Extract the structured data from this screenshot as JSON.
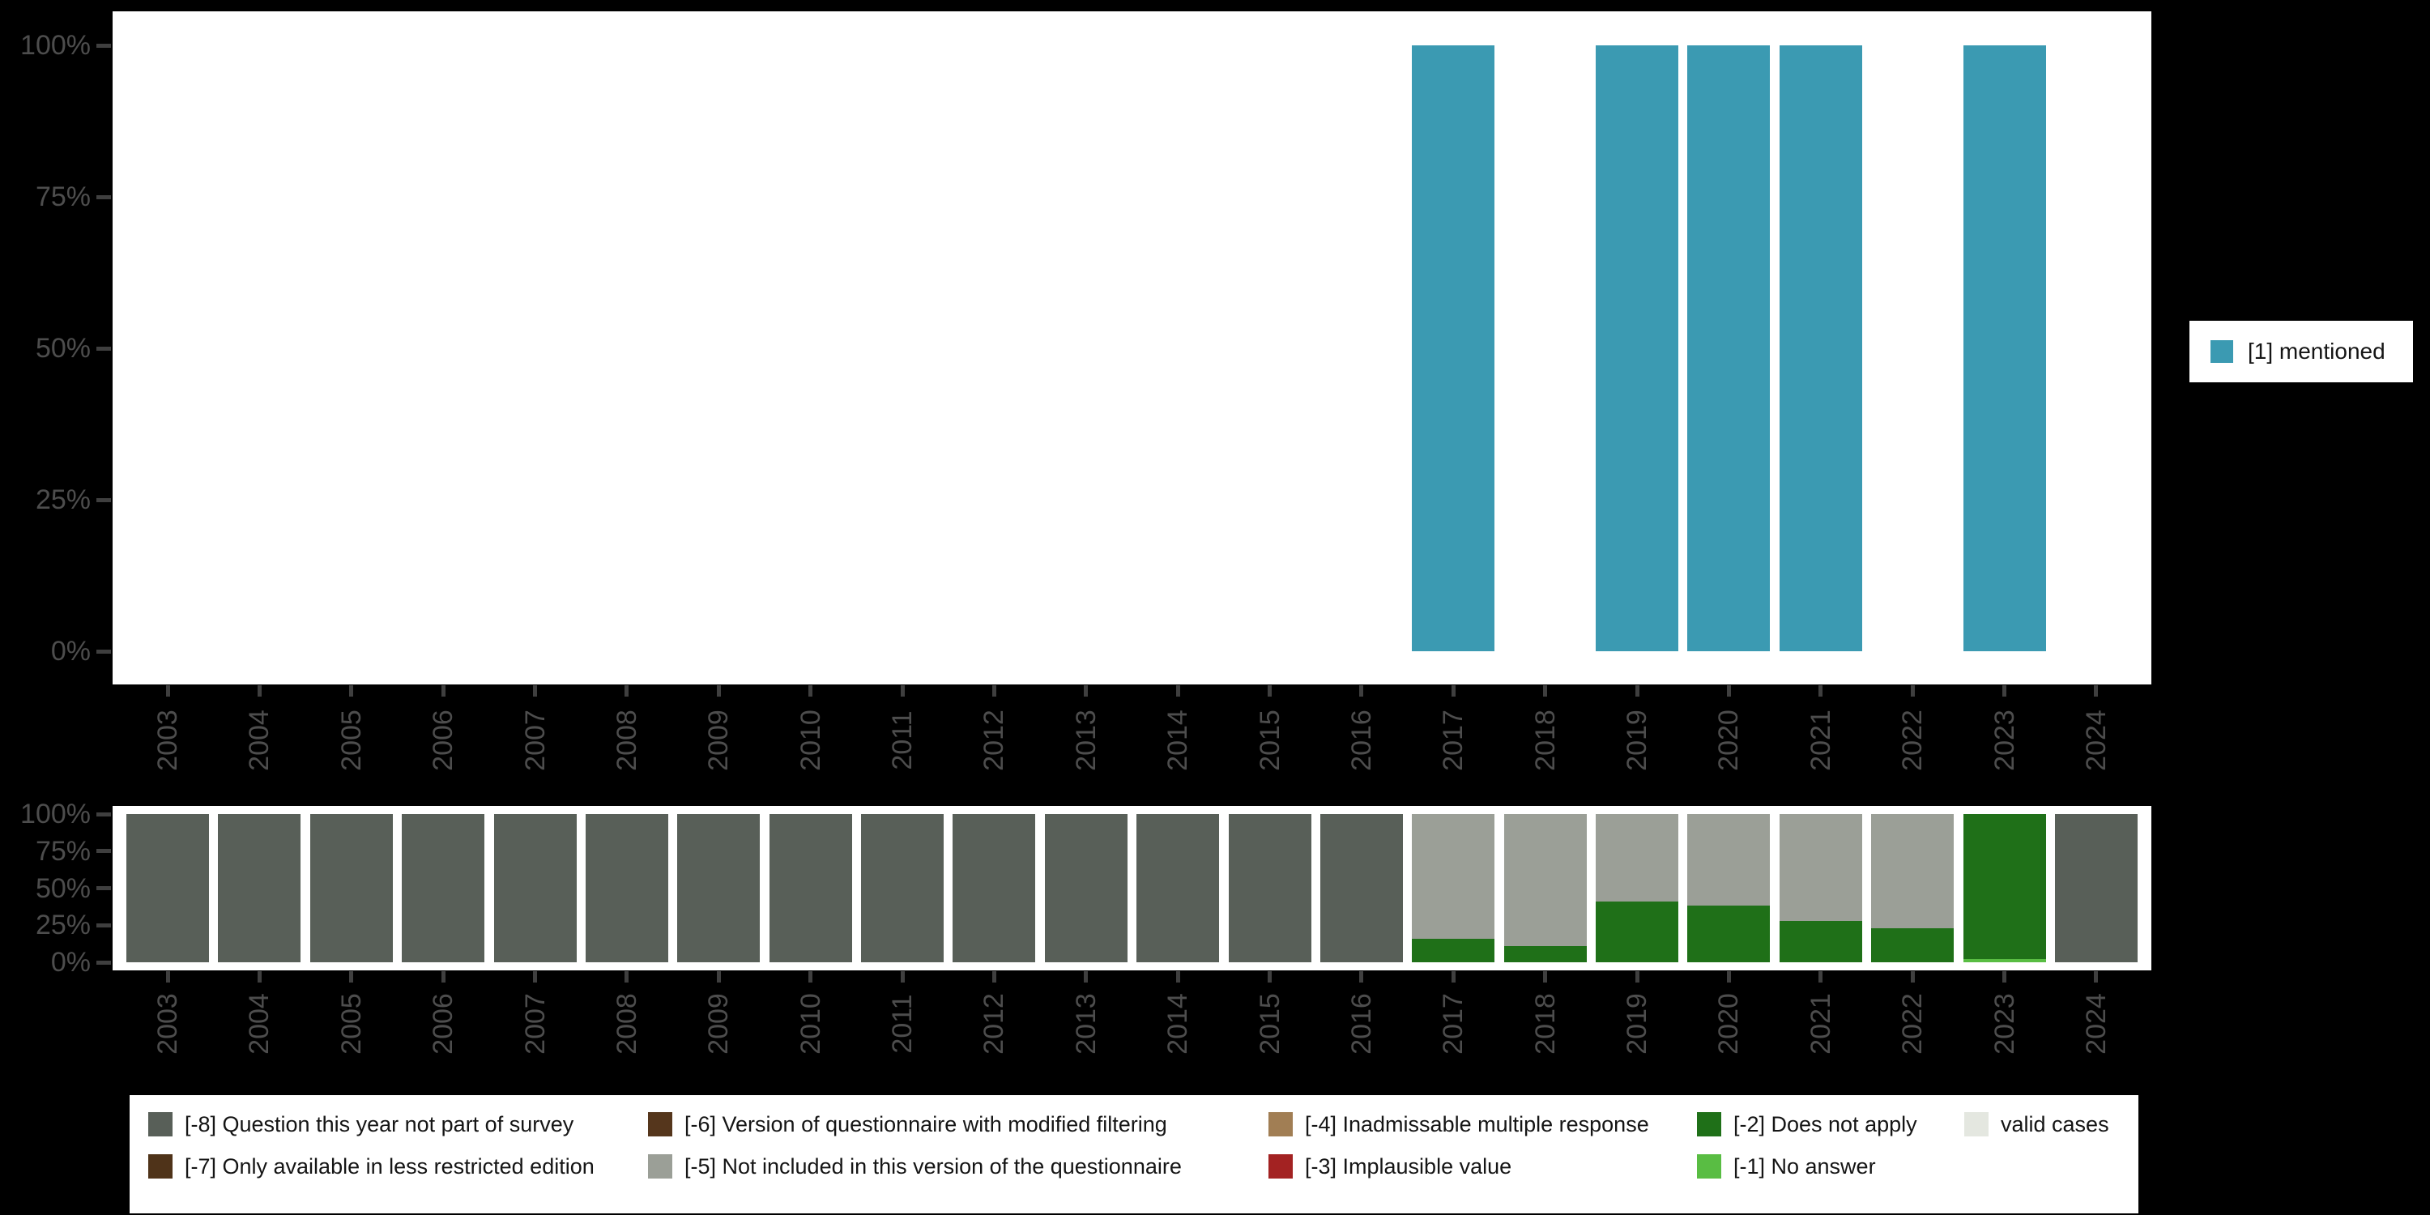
{
  "background_color": "#000000",
  "axis_text_color": "#4d4d4d",
  "chart_data": [
    {
      "type": "bar",
      "title": "",
      "xlabel": "",
      "ylabel": "",
      "ylim": [
        0,
        100
      ],
      "grid": false,
      "y_ticks": [
        "100%",
        "75%",
        "50%",
        "25%",
        "0%"
      ],
      "categories": [
        "2003",
        "2004",
        "2005",
        "2006",
        "2007",
        "2008",
        "2009",
        "2010",
        "2011",
        "2012",
        "2013",
        "2014",
        "2015",
        "2016",
        "2017",
        "2018",
        "2019",
        "2020",
        "2021",
        "2022",
        "2023",
        "2024"
      ],
      "series": [
        {
          "name": "[1] mentioned",
          "color": "#3B9AB2",
          "values": [
            null,
            null,
            null,
            null,
            null,
            null,
            null,
            null,
            null,
            null,
            null,
            null,
            null,
            null,
            100,
            null,
            100,
            100,
            100,
            null,
            100,
            null
          ]
        }
      ],
      "legend": {
        "position": "right",
        "entries": [
          {
            "label": "[1] mentioned",
            "color": "#3B9AB2"
          }
        ]
      }
    },
    {
      "type": "stacked-bar-100",
      "title": "",
      "xlabel": "",
      "ylabel": "",
      "ylim": [
        0,
        100
      ],
      "grid": false,
      "y_ticks": [
        "100%",
        "75%",
        "50%",
        "25%",
        "0%"
      ],
      "categories": [
        "2003",
        "2004",
        "2005",
        "2006",
        "2007",
        "2008",
        "2009",
        "2010",
        "2011",
        "2012",
        "2013",
        "2014",
        "2015",
        "2016",
        "2017",
        "2018",
        "2019",
        "2020",
        "2021",
        "2022",
        "2023",
        "2024"
      ],
      "series": [
        {
          "name": "[-8] Question this year not part of survey",
          "color": "#585F58",
          "values": [
            100,
            100,
            100,
            100,
            100,
            100,
            100,
            100,
            100,
            100,
            100,
            100,
            100,
            100,
            0,
            0,
            0,
            0,
            0,
            0,
            0,
            100
          ]
        },
        {
          "name": "[-7] Only available in less restricted edition",
          "color": "#4F3319",
          "values": [
            0,
            0,
            0,
            0,
            0,
            0,
            0,
            0,
            0,
            0,
            0,
            0,
            0,
            0,
            0,
            0,
            0,
            0,
            0,
            0,
            0,
            0
          ]
        },
        {
          "name": "[-6] Version of questionnaire with modified filtering",
          "color": "#55361C",
          "values": [
            0,
            0,
            0,
            0,
            0,
            0,
            0,
            0,
            0,
            0,
            0,
            0,
            0,
            0,
            0,
            0,
            0,
            0,
            0,
            0,
            0,
            0
          ]
        },
        {
          "name": "[-5] Not included in this version of the questionnaire",
          "color": "#9B9F97",
          "values": [
            0,
            0,
            0,
            0,
            0,
            0,
            0,
            0,
            0,
            0,
            0,
            0,
            0,
            0,
            84,
            89,
            59,
            62,
            72,
            77,
            0,
            0
          ]
        },
        {
          "name": "[-4] Inadmissable multiple response",
          "color": "#A17E54",
          "values": [
            0,
            0,
            0,
            0,
            0,
            0,
            0,
            0,
            0,
            0,
            0,
            0,
            0,
            0,
            0,
            0,
            0,
            0,
            0,
            0,
            0,
            0
          ]
        },
        {
          "name": "[-3] Implausible value",
          "color": "#A32222",
          "values": [
            0,
            0,
            0,
            0,
            0,
            0,
            0,
            0,
            0,
            0,
            0,
            0,
            0,
            0,
            0,
            0,
            0,
            0,
            0,
            0,
            0,
            0
          ]
        },
        {
          "name": "[-2] Does not apply",
          "color": "#1F7018",
          "values": [
            0,
            0,
            0,
            0,
            0,
            0,
            0,
            0,
            0,
            0,
            0,
            0,
            0,
            0,
            16,
            11,
            41,
            38,
            28,
            23,
            98,
            0
          ]
        },
        {
          "name": "[-1] No answer",
          "color": "#59BD43",
          "values": [
            0,
            0,
            0,
            0,
            0,
            0,
            0,
            0,
            0,
            0,
            0,
            0,
            0,
            0,
            0,
            0,
            0,
            0,
            0,
            0,
            2,
            0
          ]
        },
        {
          "name": "valid cases",
          "color": "#E4E7E0",
          "values": [
            0,
            0,
            0,
            0,
            0,
            0,
            0,
            0,
            0,
            0,
            0,
            0,
            0,
            0,
            0,
            0,
            0,
            0,
            0,
            0,
            0,
            0
          ]
        }
      ],
      "legend": {
        "position": "bottom",
        "entries": [
          {
            "label": "[-8] Question this year not part of survey",
            "color": "#585F58"
          },
          {
            "label": "[-7] Only available in less restricted edition",
            "color": "#4F3319"
          },
          {
            "label": "[-6] Version of questionnaire with modified filtering",
            "color": "#55361C"
          },
          {
            "label": "[-5] Not included in this version of the questionnaire",
            "color": "#9B9F97"
          },
          {
            "label": "[-4] Inadmissable multiple response",
            "color": "#A17E54"
          },
          {
            "label": "[-3] Implausible value",
            "color": "#A32222"
          },
          {
            "label": "[-2] Does not apply",
            "color": "#1F7018"
          },
          {
            "label": "[-1] No answer",
            "color": "#59BD43"
          },
          {
            "label": "valid cases",
            "color": "#E4E7E0"
          }
        ]
      }
    }
  ]
}
